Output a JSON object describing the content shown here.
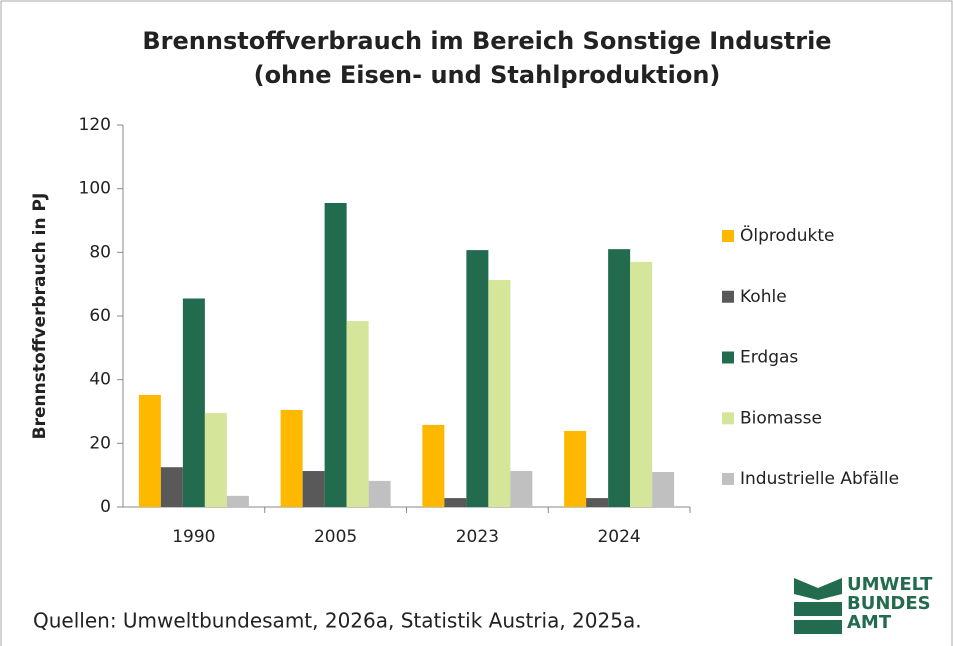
{
  "chart_data": {
    "type": "bar",
    "title": "Brennstoffverbrauch im Bereich Sonstige Industrie",
    "subtitle": "(ohne Eisen- und Stahlproduktion)",
    "y_label": "Brennstoffverbrauch in PJ",
    "categories": [
      "1990",
      "2005",
      "2023",
      "2024"
    ],
    "series": [
      {
        "name": "Ölprodukte",
        "color": "#ffb800",
        "values": [
          35.2,
          30.5,
          25.8,
          23.9
        ]
      },
      {
        "name": "Kohle",
        "color": "#595959",
        "values": [
          12.5,
          11.3,
          2.8,
          2.8
        ]
      },
      {
        "name": "Erdgas",
        "color": "#236b4e",
        "values": [
          65.5,
          95.5,
          80.7,
          81
        ]
      },
      {
        "name": "Biomasse",
        "color": "#d5e59a",
        "values": [
          29.5,
          58.4,
          71.3,
          77
        ]
      },
      {
        "name": "Industrielle Abfälle",
        "color": "#c0c0c0",
        "values": [
          3.5,
          8.2,
          11.3,
          11
        ]
      }
    ],
    "ylim": [
      0,
      120
    ],
    "yticks": [
      0,
      20,
      40,
      60,
      80,
      100,
      120
    ],
    "legend": "right",
    "source": "Quellen: Umweltbundesamt, 2026a, Statistik Austria, 2025a.",
    "logo": [
      "UMWELT",
      "BUNDES",
      "AMT"
    ]
  }
}
